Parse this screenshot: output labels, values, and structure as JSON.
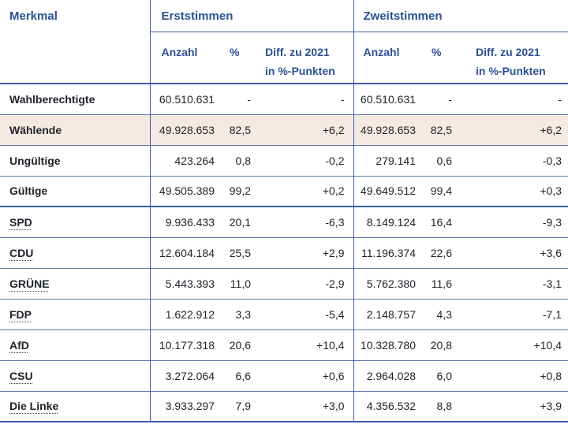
{
  "header": {
    "merkmal": "Merkmal",
    "erststimmen": "Erststimmen",
    "zweitstimmen": "Zweitstimmen",
    "anzahl": "Anzahl",
    "percent": "%",
    "diff_line1": "Diff. zu 2021",
    "diff_line2": "in %-Punkten"
  },
  "rows": [
    {
      "label": "Wahlberechtigte",
      "highlighted": false,
      "e_anzahl": "60.510.631",
      "e_pct": "-",
      "e_diff": "-",
      "z_anzahl": "60.510.631",
      "z_pct": "-",
      "z_diff": "-"
    },
    {
      "label": "Wählende",
      "highlighted": true,
      "e_anzahl": "49.928.653",
      "e_pct": "82,5",
      "e_diff": "+6,2",
      "z_anzahl": "49.928.653",
      "z_pct": "82,5",
      "z_diff": "+6,2"
    },
    {
      "label": "Ungültige",
      "highlighted": false,
      "e_anzahl": "423.264",
      "e_pct": "0,8",
      "e_diff": "-0,2",
      "z_anzahl": "279.141",
      "z_pct": "0,6",
      "z_diff": "-0,3"
    },
    {
      "label": "Gültige",
      "highlighted": false,
      "e_anzahl": "49.505.389",
      "e_pct": "99,2",
      "e_diff": "+0,2",
      "z_anzahl": "49.649.512",
      "z_pct": "99,4",
      "z_diff": "+0,3"
    },
    {
      "label": "SPD",
      "highlighted": false,
      "e_anzahl": "9.936.433",
      "e_pct": "20,1",
      "e_diff": "-6,3",
      "z_anzahl": "8.149.124",
      "z_pct": "16,4",
      "z_diff": "-9,3"
    },
    {
      "label": "CDU",
      "highlighted": false,
      "e_anzahl": "12.604.184",
      "e_pct": "25,5",
      "e_diff": "+2,9",
      "z_anzahl": "11.196.374",
      "z_pct": "22,6",
      "z_diff": "+3,6"
    },
    {
      "label": "GRÜNE",
      "highlighted": false,
      "e_anzahl": "5.443.393",
      "e_pct": "11,0",
      "e_diff": "-2,9",
      "z_anzahl": "5.762.380",
      "z_pct": "11,6",
      "z_diff": "-3,1"
    },
    {
      "label": "FDP",
      "highlighted": false,
      "e_anzahl": "1.622.912",
      "e_pct": "3,3",
      "e_diff": "-5,4",
      "z_anzahl": "2.148.757",
      "z_pct": "4,3",
      "z_diff": "-7,1"
    },
    {
      "label": "AfD",
      "highlighted": false,
      "e_anzahl": "10.177.318",
      "e_pct": "20,6",
      "e_diff": "+10,4",
      "z_anzahl": "10.328.780",
      "z_pct": "20,8",
      "z_diff": "+10,4"
    },
    {
      "label": "CSU",
      "highlighted": false,
      "e_anzahl": "3.272.064",
      "e_pct": "6,6",
      "e_diff": "+0,6",
      "z_anzahl": "2.964.028",
      "z_pct": "6,0",
      "z_diff": "+0,8"
    },
    {
      "label": "Die Linke",
      "highlighted": false,
      "e_anzahl": "3.933.297",
      "e_pct": "7,9",
      "e_diff": "+3,0",
      "z_anzahl": "4.356.532",
      "z_pct": "8,8",
      "z_diff": "+3,9"
    }
  ],
  "colors": {
    "header_blue": "#2D4F93",
    "border_blue": "#3C5CA6",
    "border_blue_light": "#5B76AE",
    "row_highlight": "#F5E9E3",
    "text_dark": "#20242B"
  }
}
